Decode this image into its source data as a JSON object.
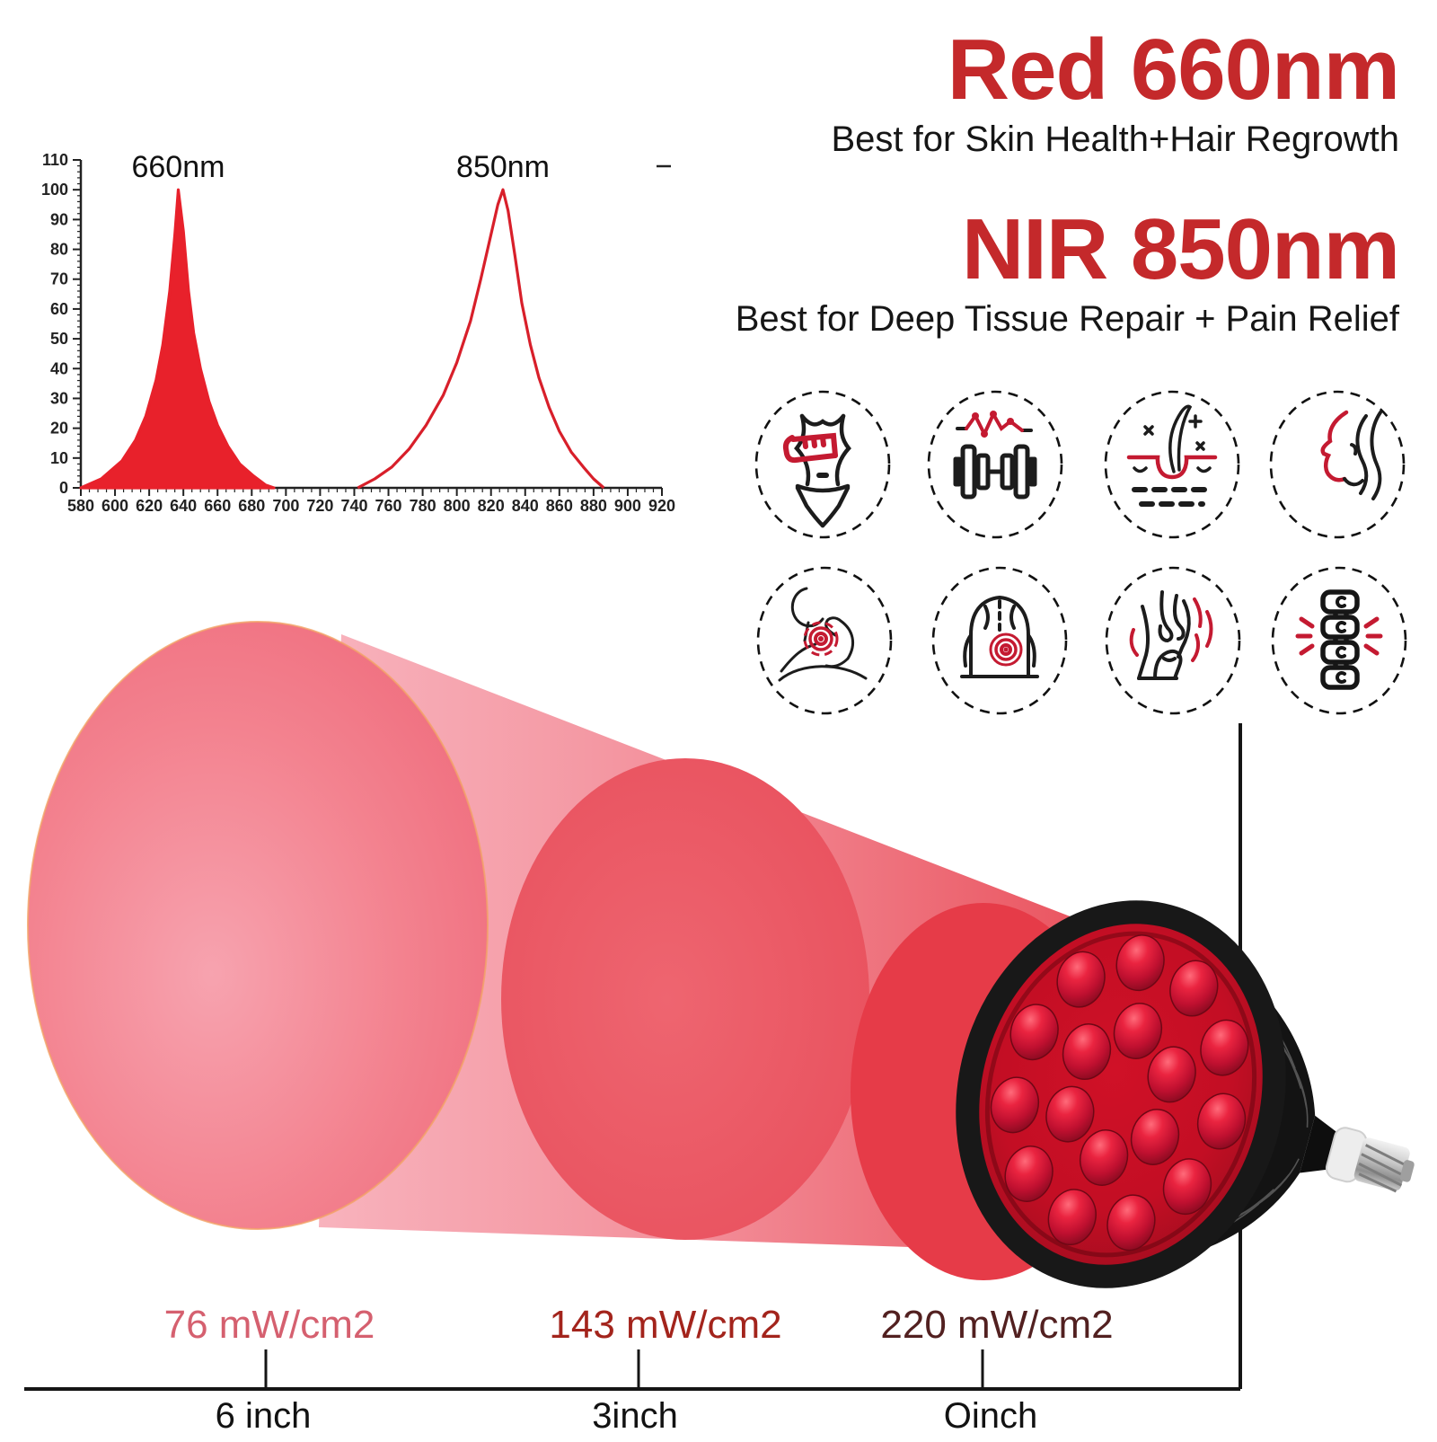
{
  "headline": {
    "red_title": "Red 660nm",
    "red_subtitle": "Best for Skin Health+Hair Regrowth",
    "nir_title": "NIR 850nm",
    "nir_subtitle": "Best for Deep Tissue Repair + Pain Relief",
    "accent_color": "#c4292b"
  },
  "chart_data": {
    "type": "area",
    "title": "",
    "xlabel": "",
    "ylabel": "",
    "xlim": [
      580,
      920
    ],
    "ylim": [
      0,
      110
    ],
    "x_ticks": [
      580,
      600,
      620,
      640,
      660,
      680,
      700,
      720,
      740,
      760,
      780,
      800,
      820,
      840,
      860,
      880,
      900,
      920
    ],
    "x_minor_step": 5,
    "y_ticks": [
      0,
      10,
      20,
      30,
      40,
      50,
      60,
      70,
      80,
      90,
      100,
      110
    ],
    "y_minor_step": 2,
    "grid": "off",
    "legend": "none",
    "series": [
      {
        "name": "Red 660nm emission peak",
        "label": "660nm",
        "color": "#e8212b",
        "filled": true,
        "points": [
          [
            580,
            0
          ],
          [
            592,
            3
          ],
          [
            604,
            9
          ],
          [
            612,
            16
          ],
          [
            618,
            24
          ],
          [
            624,
            36
          ],
          [
            628,
            48
          ],
          [
            632,
            66
          ],
          [
            635,
            85
          ],
          [
            637,
            100
          ],
          [
            640,
            86
          ],
          [
            643,
            66
          ],
          [
            646,
            52
          ],
          [
            650,
            40
          ],
          [
            655,
            29
          ],
          [
            660,
            21
          ],
          [
            666,
            14
          ],
          [
            673,
            8
          ],
          [
            681,
            4
          ],
          [
            688,
            1
          ],
          [
            693,
            0
          ]
        ]
      },
      {
        "name": "NIR 850nm emission peak",
        "label": "850nm",
        "color": "#d81f2a",
        "filled": false,
        "points": [
          [
            742,
            0
          ],
          [
            752,
            3
          ],
          [
            762,
            7
          ],
          [
            772,
            13
          ],
          [
            782,
            21
          ],
          [
            792,
            31
          ],
          [
            800,
            42
          ],
          [
            808,
            56
          ],
          [
            814,
            70
          ],
          [
            820,
            85
          ],
          [
            824,
            95
          ],
          [
            827,
            100
          ],
          [
            830,
            93
          ],
          [
            834,
            78
          ],
          [
            838,
            62
          ],
          [
            843,
            48
          ],
          [
            848,
            37
          ],
          [
            854,
            27
          ],
          [
            860,
            19
          ],
          [
            867,
            12
          ],
          [
            874,
            7
          ],
          [
            880,
            3
          ],
          [
            886,
            0
          ]
        ]
      }
    ]
  },
  "benefit_icons": [
    "waist-measurement",
    "muscle-fitness",
    "skin-hair-follicle",
    "facial-care",
    "neck-pain-relief",
    "back-pain-relief",
    "joint-pain-relief",
    "spine-health"
  ],
  "beam": {
    "measurements": [
      {
        "irradiance": "76 mW/cm2",
        "distance": "6 inch",
        "color": "#d5606f"
      },
      {
        "irradiance": "143 mW/cm2",
        "distance": "3inch",
        "color": "#a3241c"
      },
      {
        "irradiance": "220 mW/cm2",
        "distance": "Oinch",
        "color": "#522020"
      }
    ]
  }
}
